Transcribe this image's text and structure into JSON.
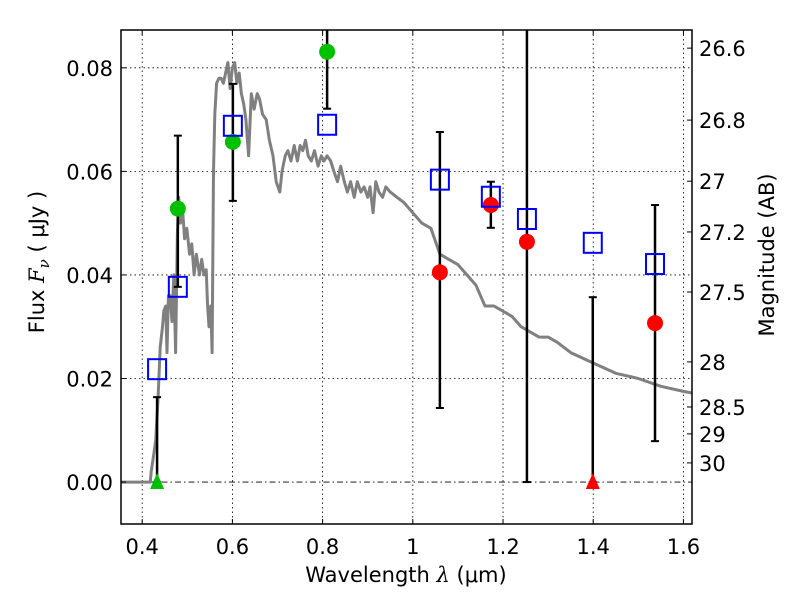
{
  "chart_data": {
    "type": "scatter",
    "title": "",
    "xlabel": "Wavelength  λ (μm)",
    "xlabel_parts": {
      "prefix": "Wavelength  ",
      "symbol": "λ",
      "suffix": " (μm)"
    },
    "ylabel": "Flux  Fν  ( μJy )",
    "ylabel_parts": {
      "prefix": "Flux  ",
      "symbol": "F",
      "subscript": "ν",
      "suffix": "  ( μJy )"
    },
    "y2label": "Magnitude (AB)",
    "xlim": [
      0.353,
      1.619
    ],
    "ylim": [
      -0.0081,
      0.0873
    ],
    "grid": true,
    "x_ticks": [
      0.4,
      0.6,
      0.8,
      1.0,
      1.2,
      1.4,
      1.6
    ],
    "x_tick_labels": [
      "0.4",
      "0.6",
      "0.8",
      "1",
      "1.2",
      "1.4",
      "1.6"
    ],
    "y_ticks": [
      0.0,
      0.02,
      0.04,
      0.06,
      0.08
    ],
    "y_tick_labels": [
      "0.00",
      "0.02",
      "0.04",
      "0.06",
      "0.08"
    ],
    "y2_ticks": [
      {
        "label": "26.6",
        "flux": 0.0838
      },
      {
        "label": "26.8",
        "flux": 0.0699
      },
      {
        "label": "27",
        "flux": 0.0581
      },
      {
        "label": "27.2",
        "flux": 0.0483
      },
      {
        "label": "27.5",
        "flux": 0.0367
      },
      {
        "label": "28",
        "flux": 0.0232
      },
      {
        "label": "28.5",
        "flux": 0.0145
      },
      {
        "label": "29",
        "flux": 0.0093
      },
      {
        "label": "30",
        "flux": 0.0037
      }
    ],
    "zero_line": 0.0,
    "colors": {
      "model": "#808080",
      "green": "#00c000",
      "red": "#ff0000",
      "blue": "#0000ff",
      "errorbar": "#000000"
    },
    "series": [
      {
        "name": "model-sed",
        "type": "line",
        "points": [
          [
            0.353,
            0.0
          ],
          [
            0.41,
            0.0
          ],
          [
            0.418,
            0.0
          ],
          [
            0.42,
            0.002
          ],
          [
            0.425,
            0.005
          ],
          [
            0.43,
            0.008
          ],
          [
            0.435,
            0.016
          ],
          [
            0.44,
            0.026
          ],
          [
            0.445,
            0.03
          ],
          [
            0.448,
            0.033
          ],
          [
            0.452,
            0.034
          ],
          [
            0.455,
            0.025
          ],
          [
            0.458,
            0.036
          ],
          [
            0.462,
            0.036
          ],
          [
            0.466,
            0.031
          ],
          [
            0.47,
            0.04
          ],
          [
            0.474,
            0.025
          ],
          [
            0.478,
            0.048
          ],
          [
            0.481,
            0.055
          ],
          [
            0.485,
            0.05
          ],
          [
            0.49,
            0.052
          ],
          [
            0.494,
            0.047
          ],
          [
            0.499,
            0.049
          ],
          [
            0.505,
            0.044
          ],
          [
            0.51,
            0.046
          ],
          [
            0.515,
            0.04
          ],
          [
            0.52,
            0.044
          ],
          [
            0.527,
            0.04
          ],
          [
            0.532,
            0.043
          ],
          [
            0.537,
            0.04
          ],
          [
            0.542,
            0.041
          ],
          [
            0.545,
            0.034
          ],
          [
            0.548,
            0.03
          ],
          [
            0.552,
            0.034
          ],
          [
            0.555,
            0.025
          ],
          [
            0.558,
            0.06
          ],
          [
            0.561,
            0.071
          ],
          [
            0.565,
            0.077
          ],
          [
            0.57,
            0.078
          ],
          [
            0.575,
            0.078
          ],
          [
            0.58,
            0.077
          ],
          [
            0.585,
            0.079
          ],
          [
            0.59,
            0.081
          ],
          [
            0.595,
            0.076
          ],
          [
            0.6,
            0.08
          ],
          [
            0.605,
            0.081
          ],
          [
            0.61,
            0.077
          ],
          [
            0.615,
            0.079
          ],
          [
            0.62,
            0.075
          ],
          [
            0.625,
            0.073
          ],
          [
            0.63,
            0.07
          ],
          [
            0.636,
            0.063
          ],
          [
            0.642,
            0.075
          ],
          [
            0.648,
            0.072
          ],
          [
            0.655,
            0.075
          ],
          [
            0.66,
            0.074
          ],
          [
            0.667,
            0.071
          ],
          [
            0.675,
            0.07
          ],
          [
            0.682,
            0.066
          ],
          [
            0.69,
            0.063
          ],
          [
            0.697,
            0.058
          ],
          [
            0.705,
            0.056
          ],
          [
            0.71,
            0.06
          ],
          [
            0.717,
            0.063
          ],
          [
            0.723,
            0.064
          ],
          [
            0.73,
            0.062
          ],
          [
            0.737,
            0.065
          ],
          [
            0.744,
            0.062
          ],
          [
            0.75,
            0.065
          ],
          [
            0.756,
            0.064
          ],
          [
            0.762,
            0.066
          ],
          [
            0.768,
            0.063
          ],
          [
            0.775,
            0.062
          ],
          [
            0.782,
            0.064
          ],
          [
            0.79,
            0.061
          ],
          [
            0.797,
            0.063
          ],
          [
            0.803,
            0.062
          ],
          [
            0.81,
            0.063
          ],
          [
            0.818,
            0.062
          ],
          [
            0.825,
            0.06
          ],
          [
            0.833,
            0.058
          ],
          [
            0.84,
            0.061
          ],
          [
            0.848,
            0.058
          ],
          [
            0.855,
            0.056
          ],
          [
            0.862,
            0.058
          ],
          [
            0.87,
            0.055
          ],
          [
            0.877,
            0.058
          ],
          [
            0.885,
            0.056
          ],
          [
            0.892,
            0.057
          ],
          [
            0.9,
            0.055
          ],
          [
            0.905,
            0.057
          ],
          [
            0.912,
            0.052
          ],
          [
            0.918,
            0.058
          ],
          [
            0.925,
            0.056
          ],
          [
            0.933,
            0.055
          ],
          [
            0.94,
            0.057
          ],
          [
            0.95,
            0.056
          ],
          [
            0.965,
            0.055
          ],
          [
            0.98,
            0.054
          ],
          [
            1.0,
            0.052
          ],
          [
            1.02,
            0.05
          ],
          [
            1.04,
            0.049
          ],
          [
            1.06,
            0.044
          ],
          [
            1.08,
            0.043
          ],
          [
            1.1,
            0.042
          ],
          [
            1.12,
            0.04
          ],
          [
            1.14,
            0.038
          ],
          [
            1.16,
            0.034
          ],
          [
            1.18,
            0.034
          ],
          [
            1.2,
            0.033
          ],
          [
            1.22,
            0.032
          ],
          [
            1.24,
            0.03
          ],
          [
            1.26,
            0.029
          ],
          [
            1.28,
            0.028
          ],
          [
            1.3,
            0.028
          ],
          [
            1.32,
            0.027
          ],
          [
            1.35,
            0.025
          ],
          [
            1.4,
            0.023
          ],
          [
            1.45,
            0.021
          ],
          [
            1.5,
            0.02
          ],
          [
            1.55,
            0.0185
          ],
          [
            1.6,
            0.0175
          ],
          [
            1.619,
            0.0172
          ]
        ]
      },
      {
        "name": "green-detections",
        "marker": "circle",
        "color": "#00c000",
        "points": [
          {
            "x": 0.479,
            "y": 0.0528,
            "err_lo": 0.0377,
            "err_hi": 0.0669
          },
          {
            "x": 0.601,
            "y": 0.0657,
            "err_lo": 0.0543,
            "err_hi": 0.0769
          },
          {
            "x": 0.81,
            "y": 0.0831,
            "err_lo": 0.0721,
            "err_hi": 0.095
          }
        ]
      },
      {
        "name": "green-upper-limits",
        "marker": "triangle",
        "color": "#00c000",
        "points": [
          {
            "x": 0.433,
            "y": 0.0,
            "err_lo": 0.0,
            "err_hi": 0.0164
          }
        ]
      },
      {
        "name": "red-detections",
        "marker": "circle",
        "color": "#ff0000",
        "points": [
          {
            "x": 1.06,
            "y": 0.0405,
            "err_lo": 0.0143,
            "err_hi": 0.0676
          },
          {
            "x": 1.173,
            "y": 0.0535,
            "err_lo": 0.0491,
            "err_hi": 0.058
          },
          {
            "x": 1.253,
            "y": 0.0464,
            "err_lo": 0.0,
            "err_hi": 0.095
          },
          {
            "x": 1.537,
            "y": 0.0307,
            "err_lo": 0.0079,
            "err_hi": 0.0535
          }
        ]
      },
      {
        "name": "red-upper-limits",
        "marker": "triangle",
        "color": "#ff0000",
        "points": [
          {
            "x": 1.399,
            "y": 0.0,
            "err_lo": 0.0,
            "err_hi": 0.0357
          }
        ]
      },
      {
        "name": "model-photometry",
        "marker": "square-open",
        "color": "#0000ff",
        "points": [
          {
            "x": 0.433,
            "y": 0.0218
          },
          {
            "x": 0.479,
            "y": 0.0377
          },
          {
            "x": 0.601,
            "y": 0.0688
          },
          {
            "x": 0.81,
            "y": 0.069
          },
          {
            "x": 1.06,
            "y": 0.0584
          },
          {
            "x": 1.173,
            "y": 0.0551
          },
          {
            "x": 1.253,
            "y": 0.0508
          },
          {
            "x": 1.399,
            "y": 0.0462
          },
          {
            "x": 1.537,
            "y": 0.0421
          }
        ]
      }
    ]
  }
}
